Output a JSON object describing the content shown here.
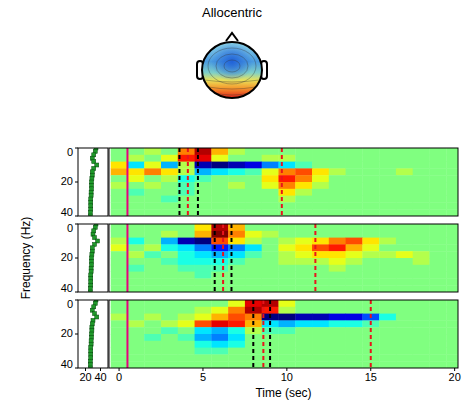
{
  "chart_data": {
    "type": "heatmap",
    "title": "Allocentric",
    "x_label": "Time (sec)",
    "y_label": "Frequency (Hz)",
    "xlim": [
      -0.6,
      20.2
    ],
    "xticks": [
      0,
      5,
      10,
      15,
      20
    ],
    "ylim": [
      0,
      40
    ],
    "yticks": [
      0,
      20,
      40
    ],
    "color_range": [
      -1,
      1
    ],
    "x": [
      0,
      1,
      2,
      3,
      4,
      5,
      6,
      7,
      8,
      9,
      10,
      11,
      12,
      13,
      14,
      15,
      16,
      17,
      18,
      19,
      20
    ],
    "y": [
      2,
      6,
      10,
      14,
      18,
      22,
      26,
      30,
      34,
      38
    ],
    "spectrum_xlim": [
      10,
      50
    ],
    "spectrum_xticks": [
      20,
      40
    ],
    "spectrum_frequency": [
      0,
      2,
      4,
      6,
      8,
      10,
      12,
      14,
      16,
      18,
      20,
      22,
      24,
      26,
      28,
      30,
      32,
      34,
      36,
      38,
      40
    ],
    "panels": [
      {
        "cells": [
          [
            0,
            0,
            0.1,
            0,
            0.5,
            0.9,
            0.4,
            0.1,
            0,
            0,
            0,
            0,
            0,
            0,
            0,
            0,
            0,
            0,
            0,
            0,
            0
          ],
          [
            0,
            0.1,
            0,
            0.2,
            0.7,
            0.8,
            0.2,
            0,
            0,
            0.1,
            0.1,
            0,
            0,
            0,
            0,
            0,
            0,
            0,
            0,
            0,
            0
          ],
          [
            0.3,
            -0.3,
            0.2,
            -0.4,
            0.1,
            -0.9,
            -1,
            -0.9,
            -0.8,
            -0.5,
            -0.3,
            -0.1,
            0,
            0,
            0,
            0,
            0,
            0,
            0,
            0,
            0
          ],
          [
            0.4,
            0.3,
            0.5,
            0.3,
            0.1,
            -0.4,
            -0.3,
            -0.2,
            -0.1,
            0.2,
            0.5,
            0.6,
            0.3,
            0.1,
            0,
            0,
            0,
            0.1,
            0,
            0,
            0
          ],
          [
            0,
            0.2,
            0,
            0.1,
            -0.2,
            -0.1,
            0,
            0,
            0,
            0.3,
            0.7,
            0.5,
            0.2,
            0,
            0,
            0,
            0,
            0,
            0,
            0,
            0
          ],
          [
            0.1,
            0,
            0.1,
            0,
            -0.1,
            0,
            0,
            0.1,
            0,
            0.2,
            0.5,
            0.3,
            0.1,
            0,
            0,
            0,
            0,
            0,
            0,
            0,
            0
          ],
          [
            0,
            -0.1,
            0,
            0,
            -0.1,
            0,
            0,
            0,
            0,
            0,
            0.3,
            0.1,
            0,
            0,
            0,
            0,
            0,
            0,
            0,
            0,
            0
          ],
          [
            0,
            0,
            0,
            -0.1,
            0,
            0,
            0,
            0,
            0,
            0,
            0.1,
            0,
            0,
            0,
            0,
            0,
            0,
            0,
            0,
            0,
            0
          ],
          [
            0,
            0,
            0,
            0,
            0,
            0,
            0,
            0,
            0,
            0,
            0,
            0,
            0,
            0,
            0,
            0,
            0,
            0,
            0,
            0,
            0
          ],
          [
            0,
            0,
            0,
            0,
            0,
            0,
            0,
            0,
            0,
            0,
            0,
            0,
            0,
            0,
            0,
            0,
            0,
            0,
            0,
            0,
            0
          ]
        ],
        "spectrum": {
          "color": "#1f9a2a",
          "marker": "square",
          "values": [
            34,
            33,
            31,
            29,
            31,
            35,
            31,
            29,
            29,
            28.5,
            28,
            28,
            28,
            27.5,
            27.5,
            27,
            27,
            27,
            27,
            26.5,
            26.5
          ]
        },
        "events": [
          {
            "time": 0.5,
            "color": "#e6007e",
            "line_style": "solid"
          },
          {
            "time": 3.6,
            "color": "#000000",
            "line_style": "dashed"
          },
          {
            "time": 4.1,
            "color": "#e8141c",
            "line_style": "dashed"
          },
          {
            "time": 4.7,
            "color": "#000000",
            "line_style": "dashed"
          },
          {
            "time": 9.7,
            "color": "#e8141c",
            "line_style": "dashed"
          }
        ]
      },
      {
        "cells": [
          [
            0,
            0,
            0,
            0,
            0,
            0.3,
            0.9,
            0.4,
            0,
            0,
            0,
            0,
            0,
            0,
            0,
            0,
            0,
            0,
            0,
            0,
            0
          ],
          [
            0,
            0,
            0,
            0.1,
            0,
            0.4,
            1,
            0.5,
            0.2,
            0.1,
            0,
            0,
            0,
            0,
            0,
            0,
            0,
            0,
            0,
            0,
            0
          ],
          [
            0.1,
            -0.2,
            0,
            -0.4,
            -0.9,
            -1,
            0.6,
            0.3,
            0.1,
            0,
            0.1,
            0.2,
            0.3,
            0.5,
            0.6,
            0.3,
            0.1,
            0,
            0,
            0,
            0
          ],
          [
            0.2,
            0,
            0.1,
            -0.2,
            -0.3,
            -0.5,
            -0.7,
            -0.5,
            -0.3,
            0,
            0.2,
            0.3,
            0.6,
            0.7,
            0.4,
            0.2,
            0,
            0,
            0,
            0,
            0
          ],
          [
            0,
            0.1,
            -0.1,
            0,
            -0.2,
            -0.3,
            -0.4,
            -0.3,
            -0.1,
            0,
            0.1,
            0.2,
            0.3,
            0.3,
            0.2,
            0.1,
            0.1,
            0.2,
            0.1,
            0,
            0
          ],
          [
            0,
            0,
            0,
            -0.1,
            -0.2,
            -0.2,
            -0.2,
            -0.1,
            0,
            0,
            0.1,
            0.1,
            0.1,
            0.2,
            0.1,
            0,
            0,
            0,
            0.1,
            0,
            0
          ],
          [
            0,
            -0.1,
            0,
            0,
            -0.1,
            -0.1,
            -0.1,
            0,
            0,
            0,
            0,
            0,
            0,
            0.1,
            0,
            0,
            0,
            0,
            0,
            0,
            0
          ],
          [
            0,
            0,
            0,
            0,
            0,
            -0.1,
            0,
            0,
            0,
            0,
            0,
            0,
            0,
            0,
            0,
            0,
            0,
            0,
            0,
            0,
            0
          ],
          [
            0,
            0,
            0,
            0,
            0,
            0,
            0,
            0,
            0,
            0,
            0,
            0,
            0,
            0,
            0,
            0,
            0,
            0,
            0,
            0,
            0
          ],
          [
            0,
            0,
            0,
            0,
            0,
            0,
            0,
            0,
            0,
            0,
            0,
            0,
            0,
            0,
            0,
            0,
            0,
            0,
            0,
            0,
            0
          ]
        ],
        "spectrum": {
          "color": "#1f9a2a",
          "marker": "square",
          "values": [
            34,
            33,
            31,
            30,
            32,
            36,
            32,
            29,
            29,
            28.5,
            28,
            28,
            28,
            27.5,
            27.5,
            27,
            27,
            27,
            27,
            26.5,
            26.5
          ]
        },
        "events": [
          {
            "time": 0.5,
            "color": "#e6007e",
            "line_style": "solid"
          },
          {
            "time": 5.7,
            "color": "#000000",
            "line_style": "dashed"
          },
          {
            "time": 6.2,
            "color": "#e8141c",
            "line_style": "dashed"
          },
          {
            "time": 6.7,
            "color": "#000000",
            "line_style": "dashed"
          },
          {
            "time": 11.7,
            "color": "#e8141c",
            "line_style": "dashed"
          }
        ]
      },
      {
        "cells": [
          [
            0,
            0,
            0,
            0,
            0,
            0,
            0,
            0.2,
            0.8,
            0.9,
            0.2,
            0,
            0,
            0,
            0,
            0,
            0,
            0,
            0,
            0,
            0
          ],
          [
            0,
            0,
            0,
            0,
            0,
            0.1,
            0.2,
            0.5,
            0.9,
            0.7,
            0.1,
            0,
            0,
            0,
            0,
            0,
            0,
            0,
            0,
            0,
            0
          ],
          [
            0.1,
            0,
            0.1,
            0,
            0.1,
            0.2,
            0.4,
            0.6,
            0.5,
            -1,
            -1,
            -0.9,
            -0.9,
            -0.8,
            -0.8,
            -0.6,
            -0.2,
            0,
            0,
            0,
            0
          ],
          [
            0,
            0.1,
            0,
            0.1,
            0.2,
            0.6,
            0.8,
            0.7,
            0.4,
            -0.3,
            -0.4,
            -0.3,
            -0.3,
            -0.2,
            -0.2,
            -0.1,
            0,
            0,
            0,
            0,
            0
          ],
          [
            0,
            0,
            0,
            -0.1,
            0,
            -0.3,
            -0.4,
            -0.2,
            0.1,
            -0.1,
            -0.1,
            0,
            0,
            0,
            0,
            0,
            0,
            0,
            0,
            0,
            0
          ],
          [
            0,
            0,
            -0.1,
            0,
            -0.1,
            -0.4,
            -0.5,
            -0.3,
            0,
            0,
            0,
            0,
            0,
            0,
            0,
            0,
            0,
            0,
            0,
            0,
            0
          ],
          [
            0,
            0,
            0,
            0,
            0,
            -0.2,
            -0.3,
            -0.2,
            0,
            0,
            0,
            0,
            0,
            0,
            0,
            0,
            0,
            0,
            0,
            0,
            0
          ],
          [
            0,
            0,
            0,
            0,
            0,
            -0.1,
            -0.1,
            0,
            0,
            0,
            0,
            0,
            0,
            0,
            0,
            0,
            0,
            0,
            0,
            0,
            0
          ],
          [
            0,
            0,
            0,
            0,
            0,
            0,
            0,
            0,
            0,
            0,
            0,
            0,
            0,
            0,
            0,
            0,
            0,
            0,
            0,
            0,
            0
          ],
          [
            0,
            0,
            0,
            0,
            0,
            0,
            0,
            0,
            0,
            0,
            0,
            0,
            0,
            0,
            0,
            0,
            0,
            0,
            0,
            0,
            0
          ]
        ],
        "spectrum": {
          "color": "#1f9a2a",
          "marker": "square",
          "values": [
            34,
            33,
            31,
            29,
            32,
            35,
            30,
            29,
            28.5,
            28.5,
            28,
            28,
            27.5,
            27.5,
            27,
            27,
            27,
            27,
            26.5,
            26.5,
            26.5
          ]
        },
        "events": [
          {
            "time": 0.5,
            "color": "#e6007e",
            "line_style": "solid"
          },
          {
            "time": 8.0,
            "color": "#000000",
            "line_style": "dashed"
          },
          {
            "time": 8.6,
            "color": "#e8141c",
            "line_style": "dashed"
          },
          {
            "time": 9.0,
            "color": "#000000",
            "line_style": "dashed"
          },
          {
            "time": 15.0,
            "color": "#e8141c",
            "line_style": "dashed"
          }
        ]
      }
    ]
  }
}
